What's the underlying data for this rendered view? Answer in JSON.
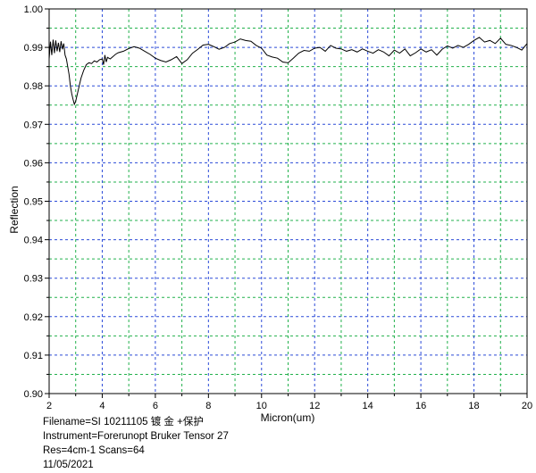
{
  "chart_data": {
    "type": "line",
    "title": "",
    "xlabel": "Micron(um)",
    "ylabel": "Reflection",
    "xlim": [
      2,
      20
    ],
    "ylim": [
      0.9,
      1.0
    ],
    "grid": true,
    "grid_style": "dashed",
    "xticks": [
      "2",
      "4",
      "6",
      "8",
      "10",
      "12",
      "14",
      "16",
      "18",
      "20"
    ],
    "yticks": [
      "0.90",
      "0.91",
      "0.92",
      "0.93",
      "0.94",
      "0.95",
      "0.96",
      "0.97",
      "0.98",
      "0.99",
      "1.00"
    ],
    "series": [
      {
        "color": "#000000",
        "x": [
          2.0,
          2.05,
          2.1,
          2.15,
          2.2,
          2.25,
          2.3,
          2.35,
          2.4,
          2.45,
          2.5,
          2.55,
          2.6,
          2.65,
          2.7,
          2.75,
          2.8,
          2.85,
          2.9,
          2.95,
          3.0,
          3.05,
          3.1,
          3.15,
          3.2,
          3.3,
          3.4,
          3.5,
          3.6,
          3.7,
          3.8,
          3.9,
          4.0,
          4.05,
          4.1,
          4.15,
          4.2,
          4.3,
          4.4,
          4.5,
          4.6,
          4.8,
          5.0,
          5.2,
          5.4,
          5.6,
          5.8,
          6.0,
          6.2,
          6.4,
          6.6,
          6.8,
          7.0,
          7.2,
          7.4,
          7.6,
          7.8,
          8.0,
          8.2,
          8.4,
          8.6,
          8.8,
          9.0,
          9.2,
          9.4,
          9.6,
          9.8,
          10.0,
          10.2,
          10.4,
          10.6,
          10.8,
          11.0,
          11.2,
          11.4,
          11.6,
          11.8,
          12.0,
          12.2,
          12.4,
          12.6,
          12.8,
          13.0,
          13.2,
          13.4,
          13.6,
          13.8,
          14.0,
          14.2,
          14.4,
          14.6,
          14.8,
          15.0,
          15.2,
          15.4,
          15.6,
          15.8,
          16.0,
          16.2,
          16.4,
          16.6,
          16.8,
          17.0,
          17.2,
          17.4,
          17.6,
          17.8,
          18.0,
          18.2,
          18.4,
          18.6,
          18.8,
          19.0,
          19.2,
          19.4,
          19.6,
          19.8,
          20.0
        ],
        "y": [
          0.987,
          0.9915,
          0.988,
          0.992,
          0.9885,
          0.9918,
          0.989,
          0.9912,
          0.9888,
          0.9916,
          0.9895,
          0.991,
          0.988,
          0.987,
          0.985,
          0.983,
          0.98,
          0.978,
          0.9765,
          0.9752,
          0.976,
          0.9775,
          0.979,
          0.9805,
          0.982,
          0.984,
          0.9855,
          0.986,
          0.9858,
          0.9865,
          0.9862,
          0.9868,
          0.987,
          0.9855,
          0.988,
          0.9862,
          0.9874,
          0.987,
          0.9876,
          0.9882,
          0.9886,
          0.989,
          0.9897,
          0.9902,
          0.9898,
          0.989,
          0.9882,
          0.9872,
          0.9866,
          0.9862,
          0.9868,
          0.9876,
          0.9858,
          0.9868,
          0.9885,
          0.9895,
          0.9906,
          0.9908,
          0.9902,
          0.9895,
          0.99,
          0.991,
          0.9914,
          0.9922,
          0.9918,
          0.9916,
          0.9905,
          0.9898,
          0.988,
          0.9875,
          0.9872,
          0.9862,
          0.986,
          0.9872,
          0.9885,
          0.9892,
          0.989,
          0.9898,
          0.99,
          0.989,
          0.9905,
          0.9898,
          0.9896,
          0.989,
          0.9894,
          0.9888,
          0.9896,
          0.989,
          0.9885,
          0.9894,
          0.9888,
          0.9878,
          0.9893,
          0.9885,
          0.9896,
          0.9878,
          0.9886,
          0.9896,
          0.9888,
          0.9894,
          0.988,
          0.9895,
          0.9904,
          0.9898,
          0.9905,
          0.99,
          0.9908,
          0.9918,
          0.9926,
          0.9914,
          0.9918,
          0.991,
          0.9924,
          0.9908,
          0.9905,
          0.99,
          0.9893,
          0.991
        ]
      }
    ]
  },
  "info": {
    "filename": "Filename=SI 10211105 镀 金 +保护",
    "instrument": "Instrument=Forerunopt Bruker Tensor 27",
    "resolution": "Res=4cm-1  Scans=64",
    "date": "11/05/2021"
  }
}
